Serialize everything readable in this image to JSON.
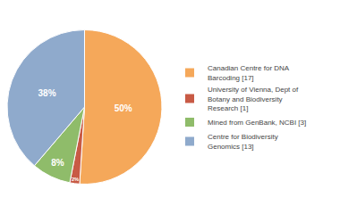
{
  "chart_data": {
    "type": "pie",
    "categories": [
      "Canadian Centre for DNA\nBarcoding [17]",
      "University of Vienna, Dept of\nBotany and Biodiversity\nResearch [1]",
      "Mined from GenBank, NCBI [3]",
      "Centre for Biodiversity\nGenomics [13]"
    ],
    "values": [
      50,
      2,
      8,
      38
    ],
    "value_labels": [
      "50%",
      "2%",
      "8%",
      "38%"
    ],
    "colors": [
      "#F5A85A",
      "#C85A45",
      "#8FBC6A",
      "#8FAACC"
    ],
    "data_labels": true,
    "legend": "right"
  }
}
